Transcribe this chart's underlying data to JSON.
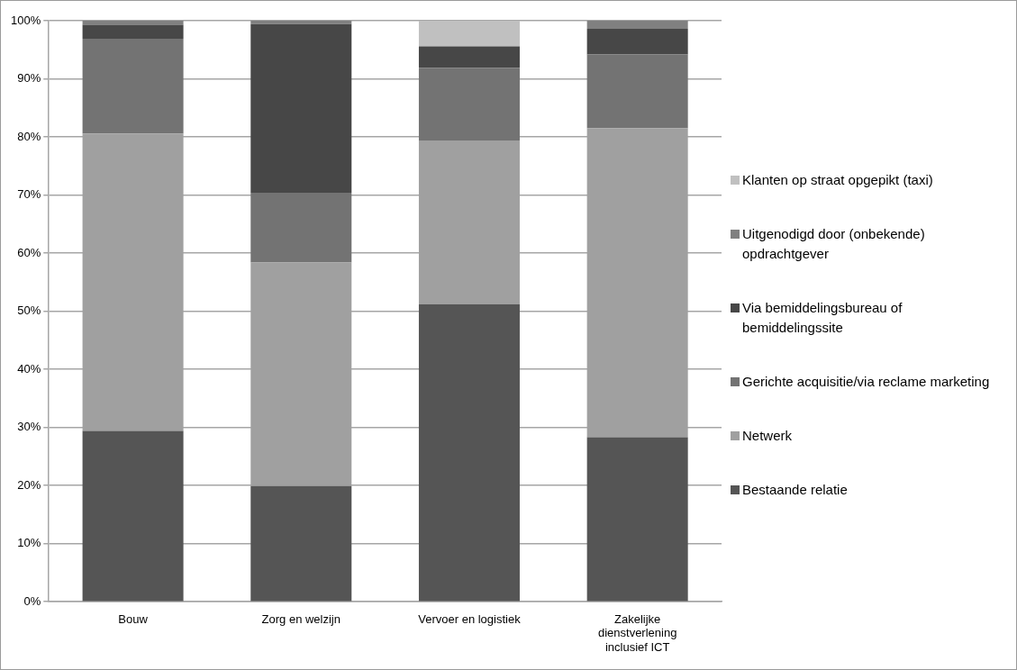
{
  "chart_data": {
    "type": "bar",
    "stacked": true,
    "categories": [
      "Bouw",
      "Zorg en welzijn",
      "Vervoer en logistiek",
      "Zakelijke dienstverlening inclusief ICT"
    ],
    "series": [
      {
        "name": "Bestaande relatie",
        "color": "#555555",
        "values": [
          29.4,
          19.9,
          51.2,
          28.3
        ]
      },
      {
        "name": "Netwerk",
        "color": "#a0a0a0",
        "values": [
          51.2,
          38.5,
          28.2,
          53.2
        ]
      },
      {
        "name": "Gerichte acquisitie/via reclame marketing",
        "color": "#737373",
        "values": [
          16.3,
          12.0,
          12.5,
          12.7
        ]
      },
      {
        "name": "Via bemiddelingsbureau of bemiddelingssite",
        "color": "#474747",
        "values": [
          2.4,
          29.0,
          3.7,
          4.4
        ]
      },
      {
        "name": "Uitgenodigd door (onbekende) opdrachtgever",
        "color": "#808080",
        "values": [
          0.7,
          0.6,
          0,
          1.4
        ]
      },
      {
        "name": "Klanten op straat opgepikt (taxi)",
        "color": "#c0c0c0",
        "values": [
          0,
          0,
          4.4,
          0
        ]
      }
    ],
    "ylim": [
      0,
      100
    ],
    "yticks": [
      {
        "value": 0,
        "label": "0%"
      },
      {
        "value": 10,
        "label": "10%"
      },
      {
        "value": 20,
        "label": "20%"
      },
      {
        "value": 30,
        "label": "30%"
      },
      {
        "value": 40,
        "label": "40%"
      },
      {
        "value": 50,
        "label": "50%"
      },
      {
        "value": 60,
        "label": "60%"
      },
      {
        "value": 70,
        "label": "70%"
      },
      {
        "value": 80,
        "label": "80%"
      },
      {
        "value": 90,
        "label": "90%"
      },
      {
        "value": 100,
        "label": "100%"
      }
    ],
    "grid": "y",
    "legend": "right"
  }
}
